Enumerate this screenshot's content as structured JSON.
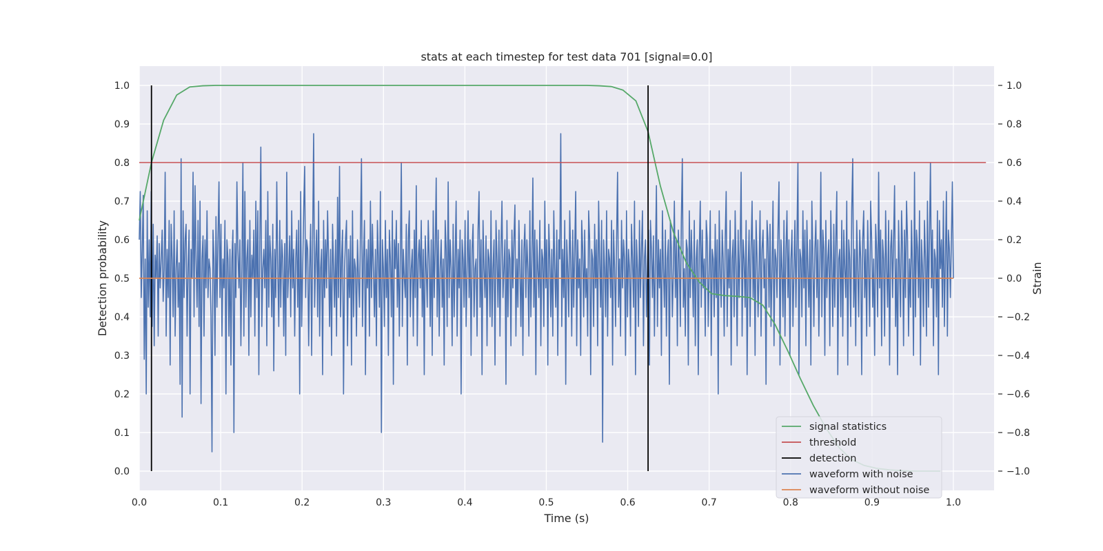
{
  "chart_data": {
    "type": "line",
    "title": "stats at each timestep for test data 701 [signal=0.0]",
    "xlabel": "Time (s)",
    "ylabel": "Detection probability",
    "y2label": "Strain",
    "xlim": [
      0.0,
      1.05
    ],
    "ylim": [
      -0.05,
      1.05
    ],
    "y2lim": [
      -1.1,
      1.1
    ],
    "xticks": [
      "0.0",
      "0.1",
      "0.2",
      "0.3",
      "0.4",
      "0.5",
      "0.6",
      "0.7",
      "0.8",
      "0.9",
      "1.0"
    ],
    "yticks": [
      "0.0",
      "0.1",
      "0.2",
      "0.3",
      "0.4",
      "0.5",
      "0.6",
      "0.7",
      "0.8",
      "0.9",
      "1.0"
    ],
    "y2ticks": [
      "−1.0",
      "−0.8",
      "−0.6",
      "−0.4",
      "−0.2",
      "0.0",
      "0.2",
      "0.4",
      "0.6",
      "0.8",
      "1.0"
    ],
    "grid": true,
    "legend_position": "lower-right",
    "colors": {
      "background": "#eaeaf2",
      "grid": "#ffffff",
      "signal_statistics": "#55a868",
      "threshold": "#c44e52",
      "detection": "#000000",
      "waveform_with_noise": "#4c72b0",
      "waveform_without_noise": "#dd8452"
    },
    "series": [
      {
        "name": "signal statistics",
        "axis": "left",
        "x": [
          0.0,
          0.015,
          0.03,
          0.046,
          0.062,
          0.078,
          0.094,
          0.11,
          0.2,
          0.3,
          0.4,
          0.5,
          0.55,
          0.565,
          0.58,
          0.594,
          0.61,
          0.625,
          0.64,
          0.656,
          0.672,
          0.688,
          0.703,
          0.719,
          0.735,
          0.75,
          0.766,
          0.781,
          0.797,
          0.812,
          0.828,
          0.844,
          0.86,
          0.875,
          0.89,
          0.906,
          0.922,
          0.938,
          0.953,
          0.969,
          0.984
        ],
        "y": [
          0.65,
          0.8,
          0.91,
          0.975,
          0.996,
          0.999,
          1.0,
          1.0,
          1.0,
          1.0,
          1.0,
          1.0,
          1.0,
          0.999,
          0.997,
          0.988,
          0.96,
          0.88,
          0.74,
          0.62,
          0.54,
          0.49,
          0.46,
          0.455,
          0.453,
          0.45,
          0.43,
          0.38,
          0.31,
          0.24,
          0.17,
          0.11,
          0.06,
          0.03,
          0.015,
          0.007,
          0.003,
          0.001,
          0.0,
          0.0,
          0.0
        ]
      },
      {
        "name": "threshold",
        "axis": "left",
        "x": [
          0.0,
          1.04
        ],
        "y": [
          0.8,
          0.8
        ]
      },
      {
        "name": "detection",
        "axis": "left",
        "segments": [
          {
            "x": 0.015,
            "y": [
              0.0,
              1.0
            ]
          },
          {
            "x": 0.625,
            "y": [
              0.0,
              1.0
            ]
          }
        ]
      },
      {
        "name": "waveform with noise",
        "axis": "right",
        "x_start": 0.0,
        "x_end": 1.0,
        "y": [
          0.2,
          0.45,
          -0.1,
          0.15,
          0.43,
          -0.42,
          0.1,
          -0.6,
          0.35,
          -0.15,
          0.2,
          -0.2,
          0.45,
          -0.25,
          0.28,
          -0.35,
          0.12,
          0.0,
          0.22,
          -0.3,
          0.18,
          -0.05,
          0.1,
          0.25,
          -0.12,
          0.05,
          0.55,
          -0.3,
          0.15,
          -0.1,
          0.3,
          -0.45,
          0.28,
          0.1,
          -0.2,
          0.35,
          -0.3,
          0.05,
          0.2,
          -0.15,
          0.08,
          -0.55,
          0.62,
          -0.72,
          0.35,
          -0.1,
          0.2,
          0.28,
          -0.3,
          0.05,
          0.25,
          -0.6,
          0.15,
          0.0,
          0.55,
          -0.2,
          0.48,
          0.1,
          -0.15,
          0.3,
          -0.25,
          0.4,
          -0.65,
          0.1,
          0.22,
          -0.3,
          0.2,
          -0.05,
          0.35,
          -0.1,
          0.1,
          0.05,
          -0.2,
          -0.9,
          0.25,
          0.1,
          -0.4,
          0.32,
          -0.15,
          0.2,
          0.5,
          -0.1,
          0.28,
          -0.3,
          0.1,
          -0.05,
          0.3,
          -0.6,
          0.2,
          0.1,
          -0.3,
          0.15,
          -0.45,
          0.1,
          0.25,
          -0.8,
          0.18,
          -0.1,
          0.5,
          0.15,
          -0.05,
          0.2,
          -0.35,
          0.05,
          0.6,
          -0.3,
          0.45,
          -0.15,
          0.1,
          0.2,
          -0.4,
          0.3,
          -0.2,
          0.12,
          0.0,
          0.25,
          -0.3,
          0.4,
          -0.1,
          0.35,
          -0.5,
          0.2,
          0.68,
          -0.25,
          0.05,
          0.15,
          -0.05,
          0.3,
          -0.35,
          0.45,
          -0.15,
          0.22,
          0.1,
          -0.2,
          0.28,
          -0.48,
          0.15,
          -0.1,
          0.5,
          0.05,
          -0.25,
          0.3,
          -0.15,
          0.2,
          0.1,
          -0.3,
          0.18,
          -0.4,
          0.55,
          -0.1,
          0.05,
          0.22,
          -0.2,
          0.35,
          -0.05,
          0.15,
          -0.3,
          0.1,
          0.25,
          -0.15,
          0.3,
          -0.6,
          0.45,
          -0.25,
          0.05,
          0.35,
          0.58,
          -0.1,
          0.2,
          0.15,
          -0.35,
          0.05,
          0.28,
          -0.4,
          0.2,
          0.75,
          -0.15,
          0.1,
          0.25,
          -0.2,
          0.4,
          -0.3,
          0.05,
          0.15,
          -0.5,
          0.3,
          -0.1,
          0.2,
          -0.05,
          0.35,
          0.1,
          -0.25,
          0.15,
          -0.4,
          0.28,
          0.05,
          -0.15,
          0.2,
          -0.3,
          0.42,
          -0.1,
          0.58,
          -0.2,
          0.1,
          0.25,
          -0.6,
          0.05,
          0.2,
          0.3,
          -0.35,
          0.15,
          -0.1,
          0.22,
          -0.45,
          0.35,
          -0.2,
          0.1,
          0.05,
          -0.3,
          0.2,
          0.0,
          -0.15,
          0.25,
          0.62,
          -0.25,
          0.1,
          0.3,
          -0.5,
          0.15,
          -0.05,
          0.2,
          -0.3,
          0.4,
          -0.1,
          0.28,
          0.05,
          -0.2,
          0.15,
          -0.35,
          0.3,
          0.1,
          -0.15,
          0.45,
          -0.8,
          0.2,
          0.05,
          -0.25,
          0.3,
          -0.1,
          0.15,
          -0.4,
          0.25,
          0.1,
          -0.2,
          0.35,
          -0.55,
          0.2,
          0.05,
          0.3,
          -0.15,
          0.18,
          -0.3,
          0.1,
          0.6,
          -0.25,
          0.15,
          0.0,
          -0.1,
          0.28,
          -0.45,
          0.2,
          0.35,
          -0.2,
          0.05,
          0.15,
          -0.3,
          0.25,
          -0.1,
          0.48,
          -0.35,
          0.1,
          0.2,
          -0.05,
          0.3,
          -0.2,
          0.15,
          -0.5,
          0.22,
          0.05,
          -0.15,
          0.3,
          0.1,
          -0.25,
          0.2,
          -0.4,
          0.35,
          -0.1,
          0.15,
          0.52,
          -0.2,
          0.25,
          -0.3,
          0.05,
          0.2,
          -0.15,
          0.1,
          -0.45,
          0.3,
          0.15,
          -0.25,
          0.5,
          -0.1,
          0.2,
          0.05,
          -0.35,
          0.28,
          -0.2,
          0.1,
          0.4,
          -0.3,
          0.15,
          -0.05,
          0.25,
          -0.6,
          0.2,
          0.1,
          -0.15,
          0.3,
          -0.25,
          0.05,
          0.35,
          -0.1,
          0.2,
          -0.4,
          0.15,
          0.28,
          -0.2,
          0.05,
          0.1,
          -0.3,
          0.25,
          0.45,
          -0.15,
          0.2,
          -0.5,
          0.3,
          0.05,
          -0.1,
          0.22,
          -0.35,
          0.15,
          0.1,
          -0.2,
          0.35,
          -0.25,
          0.05,
          0.2,
          -0.45,
          0.3,
          0.1,
          -0.15,
          0.25,
          -0.3,
          0.15,
          0.4,
          -0.1,
          0.05,
          0.2,
          -0.55,
          0.3,
          -0.2,
          0.15,
          0.1,
          -0.35,
          0.25,
          -0.05,
          0.2,
          0.38,
          -0.3,
          0.1,
          -0.15,
          0.3,
          0.05,
          -0.25,
          0.2,
          -0.4,
          0.15,
          0.28,
          -0.1,
          0.2,
          0.05,
          -0.3,
          0.35,
          -0.2,
          0.1,
          0.52,
          -0.15,
          0.25,
          -0.5,
          0.2,
          0.05,
          -0.1,
          0.3,
          -0.35,
          0.15,
          0.1,
          -0.25,
          0.4,
          -0.05,
          0.2,
          -0.45,
          0.28,
          0.1,
          -0.2,
          0.15,
          -0.3,
          0.35,
          0.05,
          -0.15,
          0.25,
          -0.4,
          0.2,
          0.1,
          0.75,
          -0.25,
          0.15,
          -0.1,
          0.3,
          -0.55,
          0.2,
          0.05,
          -0.2,
          0.35,
          0.1,
          -0.3,
          0.25,
          -0.15,
          0.15,
          0.45,
          -0.35,
          0.2,
          -0.05,
          0.1,
          -0.4,
          0.3,
          0.15,
          -0.2,
          0.25,
          -0.1,
          0.05,
          -0.3,
          0.35,
          0.2,
          -0.5,
          0.15,
          0.1,
          -0.25,
          0.28,
          -0.05,
          0.2,
          -0.35,
          0.4,
          0.1,
          -0.15,
          0.3,
          -0.85,
          0.2,
          0.05,
          -0.2,
          0.35,
          -0.3,
          0.15,
          0.1,
          -0.1,
          0.3,
          -0.45,
          0.25,
          0.05,
          -0.25,
          0.2,
          0.55,
          -0.15,
          0.1,
          -0.3,
          0.3,
          -0.05,
          0.2,
          0.1,
          -0.4,
          0.35,
          -0.2,
          0.15,
          0.05,
          -0.3,
          0.28,
          0.1,
          -0.15,
          0.4,
          -0.5,
          0.2,
          0.05,
          -0.25,
          0.3,
          -0.1,
          0.15,
          0.35,
          -0.35,
          0.1,
          0.2,
          -0.2,
          0.05,
          0.25,
          -0.45,
          0.3,
          0.15,
          -0.1,
          0.22,
          -0.3,
          0.1,
          0.48,
          -0.25,
          0.2,
          -0.05,
          0.15,
          -0.4,
          0.35,
          0.05,
          -0.15,
          0.25,
          -0.3,
          0.1,
          0.2,
          -0.55,
          0.3,
          0.15,
          -0.2,
          0.05,
          0.4,
          -0.1,
          0.2,
          -0.35,
          0.25,
          0.1,
          -0.25,
          0.3,
          0.62,
          -0.15,
          0.05,
          -0.3,
          0.2,
          0.15,
          -0.45,
          0.35,
          -0.1,
          0.25,
          0.05,
          -0.2,
          0.3,
          -0.35,
          0.1,
          0.2,
          -0.5,
          0.15,
          0.4,
          -0.15,
          0.25,
          -0.05,
          0.1,
          -0.3,
          0.3,
          0.2,
          -0.25,
          0.05,
          0.35,
          -0.4,
          0.15,
          0.1,
          -0.2,
          0.28,
          -0.1,
          0.2,
          -0.6,
          0.35,
          0.05,
          -0.15,
          0.25,
          0.1,
          -0.3,
          0.2,
          0.45,
          -0.25,
          0.15,
          -0.05,
          0.3,
          -0.45,
          0.1,
          0.2,
          -0.2,
          0.35,
          0.05,
          -0.35,
          0.25,
          -0.1,
          0.15,
          0.55,
          -0.3,
          0.2,
          0.1,
          -0.15,
          0.3,
          -0.5,
          0.05,
          0.25,
          -0.25,
          0.15,
          0.4,
          -0.1,
          0.2,
          -0.4,
          0.3,
          0.1,
          -0.2,
          0.05,
          0.35,
          -0.3,
          0.15,
          0.25,
          -0.05,
          0.1,
          -0.55,
          0.3,
          0.2,
          -0.15,
          0.28,
          -0.25,
          0.05,
          0.4,
          -0.35,
          0.15,
          0.1,
          -0.1,
          0.25,
          0.5,
          -0.45,
          0.2,
          0.05,
          -0.2,
          0.3,
          -0.3,
          0.15,
          0.35,
          -0.1,
          0.2,
          -0.4,
          0.1,
          0.25,
          -0.25,
          0.05,
          0.3,
          -0.15,
          0.2,
          0.6,
          -0.5,
          0.15,
          0.1,
          -0.2,
          0.35,
          -0.05,
          0.25,
          -0.35,
          0.3,
          0.05,
          -0.15,
          0.2,
          -0.45,
          0.4,
          0.1,
          -0.25,
          0.15,
          0.3,
          -0.1,
          0.2,
          -0.3,
          0.05,
          0.55,
          -0.2,
          0.25,
          0.15,
          -0.4,
          0.3,
          -0.1,
          0.1,
          0.2,
          -0.35,
          0.35,
          0.05,
          -0.25,
          0.28,
          -0.15,
          0.2,
          0.45,
          -0.5,
          0.1,
          0.15,
          -0.2,
          0.3,
          -0.3,
          0.25,
          0.05,
          -0.1,
          0.4,
          -0.45,
          0.2,
          0.1,
          -0.25,
          0.35,
          0.62,
          -0.15,
          0.15,
          -0.35,
          0.3,
          0.05,
          -0.2,
          0.25,
          0.1,
          -0.5,
          0.2,
          0.35,
          -0.1,
          0.15,
          -0.3,
          0.3,
          0.05,
          -0.25,
          0.4,
          0.2,
          -0.15,
          0.1,
          -0.4,
          0.28,
          0.15,
          -0.2,
          0.55,
          -0.05,
          0.25,
          -0.35,
          0.2,
          0.1,
          -0.3,
          0.35,
          0.05,
          -0.15,
          0.3,
          -0.45,
          0.15,
          0.25,
          -0.1,
          0.2,
          0.48,
          -0.25,
          0.1,
          -0.5,
          0.3,
          0.05,
          -0.2,
          0.35,
          0.15,
          -0.35,
          0.25,
          -0.1,
          0.4,
          0.2,
          -0.3,
          0.1,
          -0.15,
          0.3,
          0.05,
          -0.4,
          0.55,
          -0.2,
          0.25,
          0.15,
          -0.1,
          0.35,
          -0.45,
          0.2,
          0.05,
          -0.25,
          0.3,
          0.1,
          -0.3,
          0.4,
          -0.15,
          0.2,
          0.6,
          -0.05,
          0.25,
          -0.35,
          0.15,
          0.1,
          -0.2,
          0.35,
          -0.5,
          0.3,
          0.05,
          0.2,
          -0.15,
          0.4,
          -0.25,
          0.1,
          0.45,
          -0.3,
          0.25,
          0.15,
          -0.1,
          0.2,
          0.5,
          0.0
        ]
      },
      {
        "name": "waveform without noise",
        "axis": "right",
        "x": [
          0.0,
          1.0
        ],
        "y": [
          0.0,
          0.0
        ]
      }
    ]
  }
}
